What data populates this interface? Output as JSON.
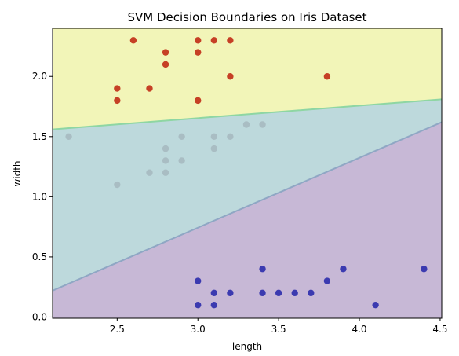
{
  "chart_data": {
    "type": "scatter",
    "title": "SVM Decision Boundaries on Iris Dataset",
    "xlabel": "length",
    "ylabel": "width",
    "xlim": [
      2.1,
      4.51
    ],
    "ylim": [
      -0.01,
      2.4
    ],
    "x_ticks": [
      "2.5",
      "3.0",
      "3.5",
      "4.0",
      "4.5"
    ],
    "y_ticks": [
      "0.0",
      "0.5",
      "1.0",
      "1.5",
      "2.0"
    ],
    "grid": false,
    "legend": "none",
    "regions": [
      {
        "class": 0,
        "color": "#c7b8d6"
      },
      {
        "class": 1,
        "color": "#bdd9dc"
      },
      {
        "class": 2,
        "color": "#f2f5b8"
      }
    ],
    "boundaries": [
      {
        "between": [
          0,
          1
        ],
        "color": "#8fa7c4",
        "line": [
          [
            2.1,
            0.22
          ],
          [
            4.51,
            1.62
          ]
        ]
      },
      {
        "between": [
          1,
          2
        ],
        "color": "#8ed6a3",
        "line": [
          [
            2.1,
            1.56
          ],
          [
            4.51,
            1.81
          ]
        ]
      }
    ],
    "series": [
      {
        "class": 0,
        "color": "#3b3ab0",
        "points": [
          [
            3.0,
            0.3
          ],
          [
            3.0,
            0.1
          ],
          [
            3.1,
            0.2
          ],
          [
            3.1,
            0.1
          ],
          [
            3.2,
            0.2
          ],
          [
            3.4,
            0.4
          ],
          [
            3.4,
            0.2
          ],
          [
            3.5,
            0.2
          ],
          [
            3.6,
            0.2
          ],
          [
            3.7,
            0.2
          ],
          [
            3.8,
            0.3
          ],
          [
            3.9,
            0.4
          ],
          [
            4.1,
            0.1
          ],
          [
            4.4,
            0.4
          ]
        ]
      },
      {
        "class": 1,
        "color": "#a9bdc3",
        "points": [
          [
            2.2,
            1.5
          ],
          [
            2.5,
            1.1
          ],
          [
            2.7,
            1.2
          ],
          [
            2.8,
            1.2
          ],
          [
            2.8,
            1.3
          ],
          [
            2.8,
            1.4
          ],
          [
            2.9,
            1.3
          ],
          [
            2.9,
            1.5
          ],
          [
            3.1,
            1.5
          ],
          [
            3.1,
            1.4
          ],
          [
            3.2,
            1.5
          ],
          [
            3.3,
            1.6
          ],
          [
            3.4,
            1.6
          ]
        ]
      },
      {
        "class": 2,
        "color": "#c64025",
        "points": [
          [
            2.5,
            1.9
          ],
          [
            2.5,
            1.8
          ],
          [
            2.6,
            2.3
          ],
          [
            2.7,
            1.9
          ],
          [
            2.8,
            2.2
          ],
          [
            2.8,
            2.1
          ],
          [
            3.0,
            2.3
          ],
          [
            3.0,
            2.2
          ],
          [
            3.0,
            1.8
          ],
          [
            3.1,
            2.3
          ],
          [
            3.2,
            2.3
          ],
          [
            3.2,
            2.0
          ],
          [
            3.8,
            2.0
          ]
        ]
      }
    ]
  }
}
